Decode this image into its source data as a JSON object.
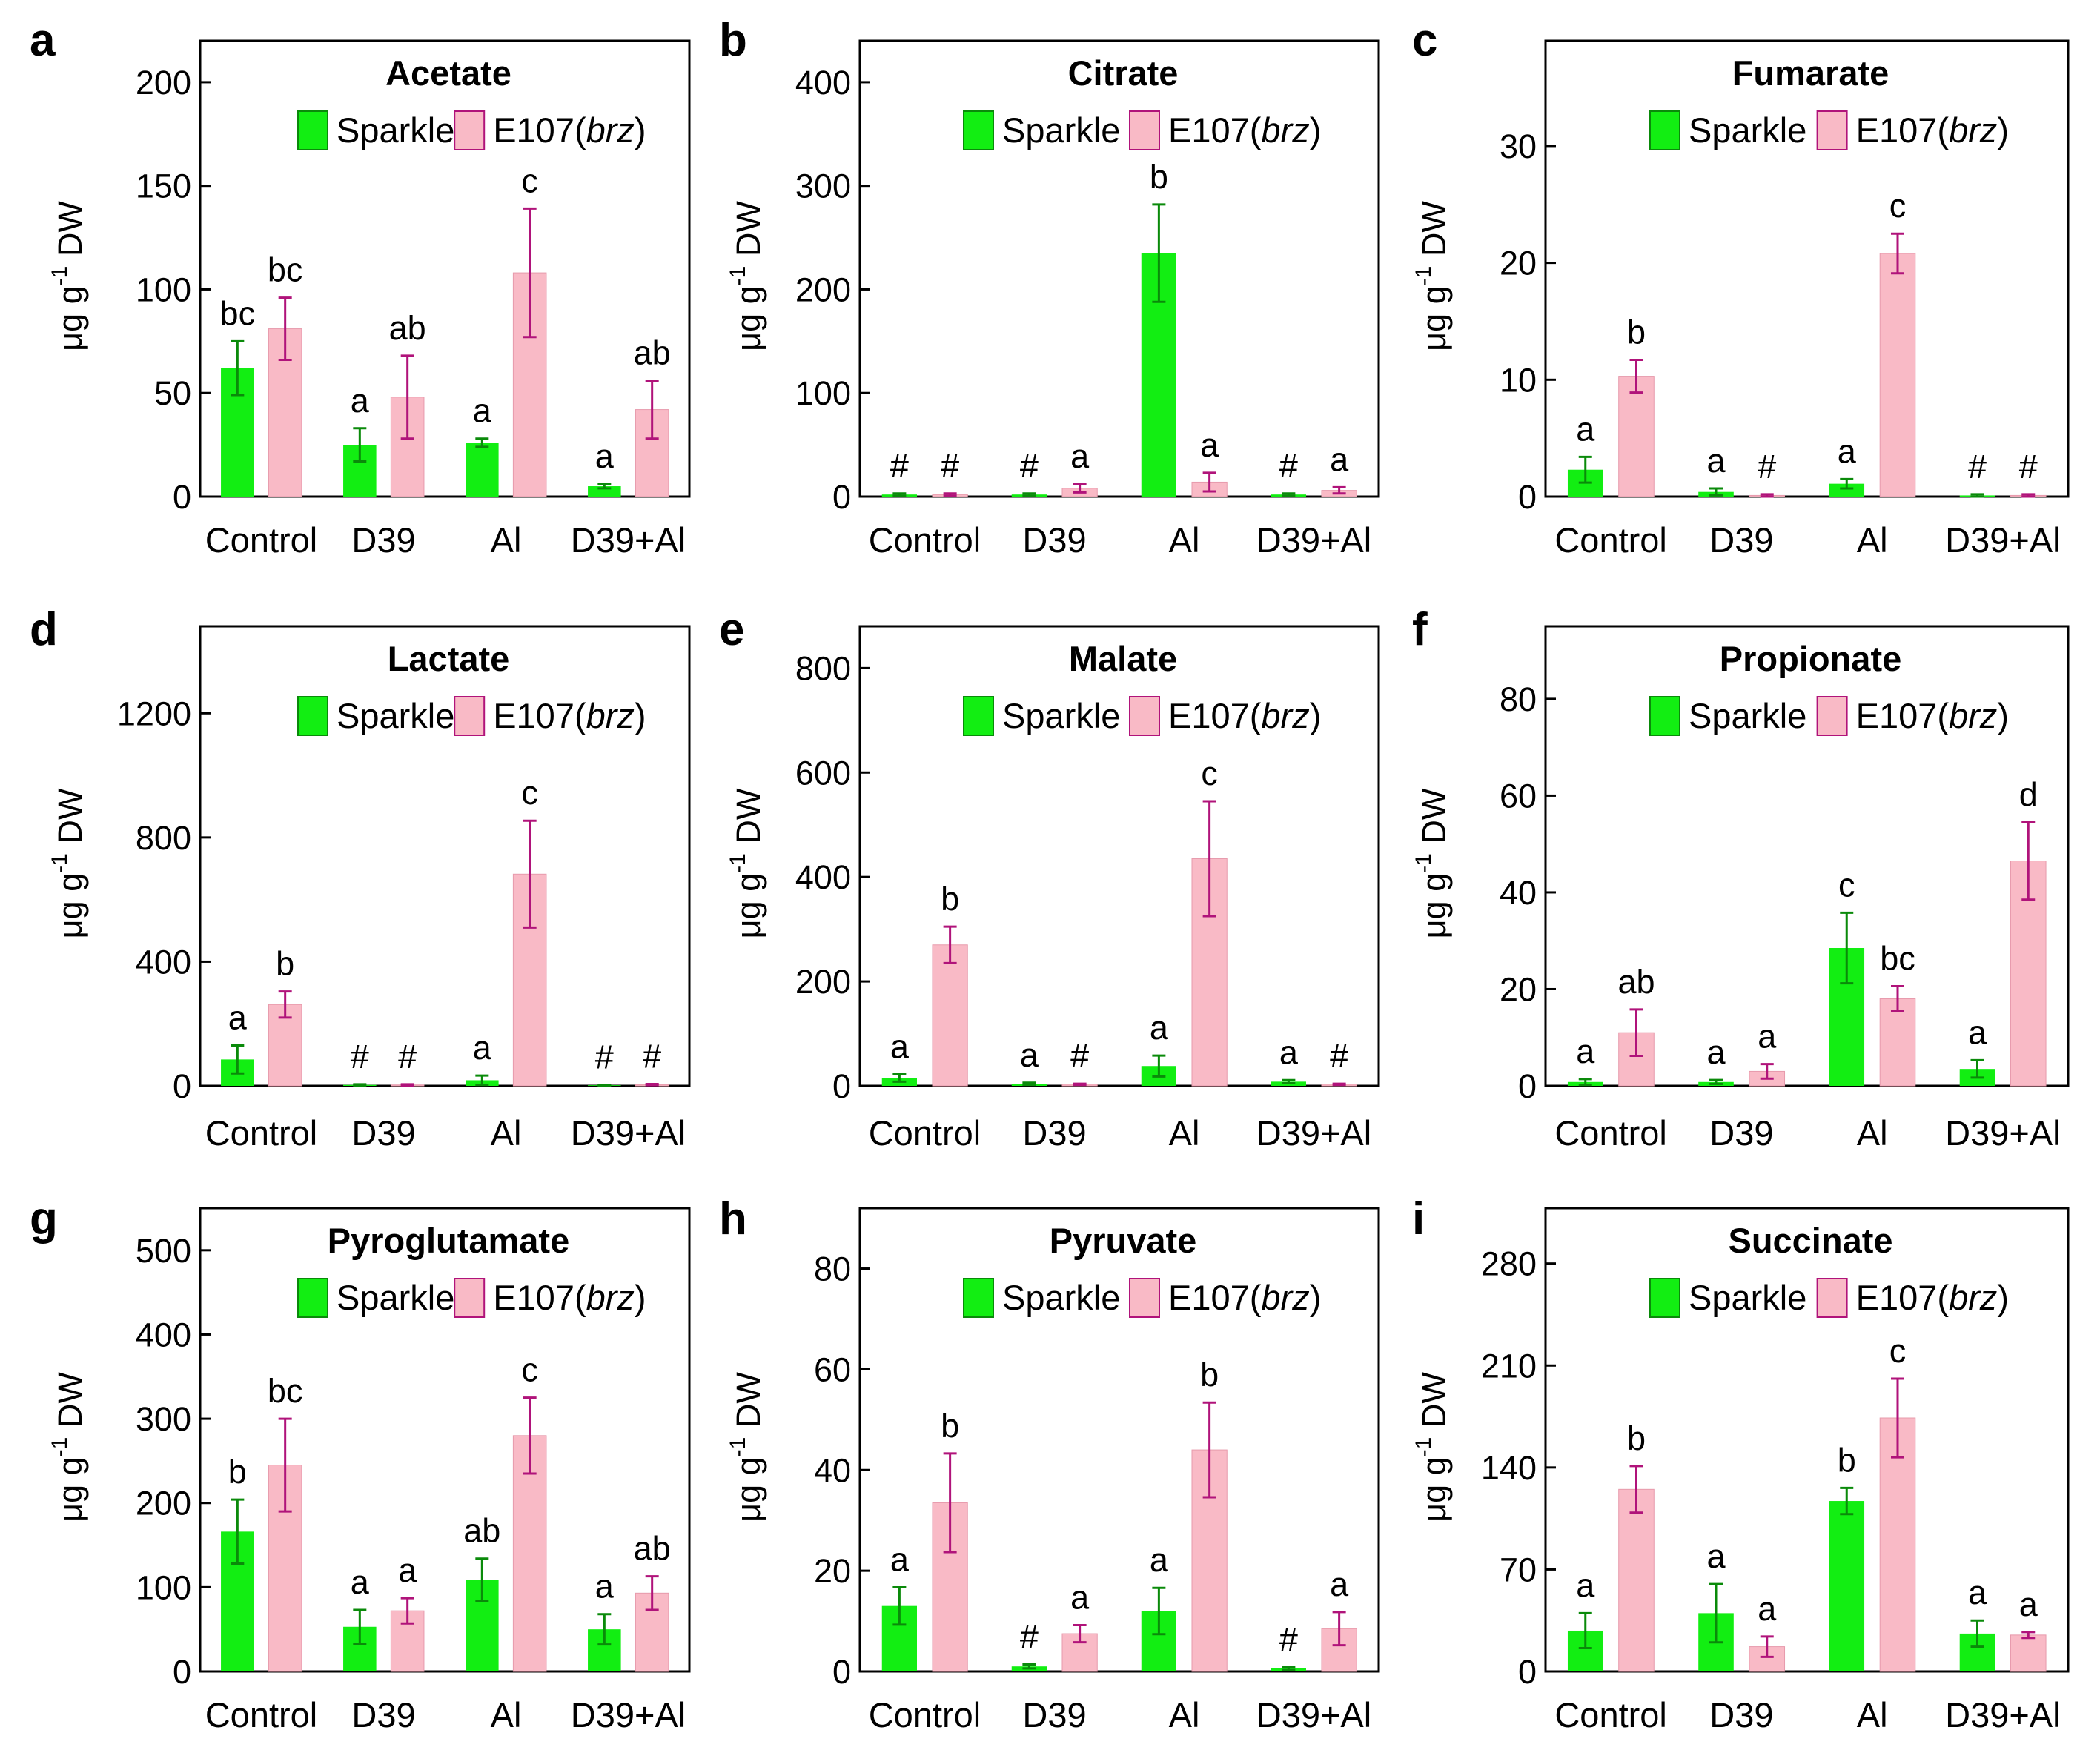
{
  "figure": {
    "categories": [
      "Control",
      "D39",
      "Al",
      "D39+Al"
    ],
    "ylabel": {
      "main": "μg g",
      "sup": "-1",
      "tail": " DW"
    },
    "legend": {
      "a": "Sparkle",
      "b_main": "E107(",
      "b_ital": "brz",
      "b_close": ")"
    },
    "colors": {
      "sparkle": "#12ee12",
      "sparkle_err": "#0a8a0a",
      "e107": "#f9bac6",
      "e107_err": "#b0137a"
    }
  },
  "chart_data": [
    {
      "panel": "a",
      "title": "Acetate",
      "type": "bar",
      "ylim": [
        0,
        220
      ],
      "ticks": [
        0,
        50,
        100,
        150,
        200
      ],
      "categories": [
        "Control",
        "D39",
        "Al",
        "D39+Al"
      ],
      "series": [
        {
          "name": "Sparkle",
          "values": [
            62,
            25,
            26,
            5
          ],
          "errors": [
            13,
            8,
            2,
            1
          ],
          "labels": [
            "bc",
            "a",
            "a",
            "a"
          ]
        },
        {
          "name": "E107(brz)",
          "values": [
            81,
            48,
            108,
            42
          ],
          "errors": [
            15,
            20,
            31,
            14
          ],
          "labels": [
            "bc",
            "ab",
            "c",
            "ab"
          ]
        }
      ]
    },
    {
      "panel": "b",
      "title": "Citrate",
      "type": "bar",
      "ylim": [
        0,
        440
      ],
      "ticks": [
        0,
        100,
        200,
        300,
        400
      ],
      "categories": [
        "Control",
        "D39",
        "Al",
        "D39+Al"
      ],
      "series": [
        {
          "name": "Sparkle",
          "values": [
            2,
            2,
            235,
            2
          ],
          "errors": [
            1,
            1,
            47,
            1
          ],
          "labels": [
            "#",
            "#",
            "b",
            "#"
          ]
        },
        {
          "name": "E107(brz)",
          "values": [
            2,
            8,
            14,
            6
          ],
          "errors": [
            1,
            4,
            9,
            3
          ],
          "labels": [
            "#",
            "a",
            "a",
            "a"
          ]
        }
      ]
    },
    {
      "panel": "c",
      "title": "Fumarate",
      "type": "bar",
      "ylim": [
        0,
        39
      ],
      "ticks": [
        0,
        10,
        20,
        30
      ],
      "categories": [
        "Control",
        "D39",
        "Al",
        "D39+Al"
      ],
      "series": [
        {
          "name": "Sparkle",
          "values": [
            2.3,
            0.4,
            1.1,
            0.1
          ],
          "errors": [
            1.1,
            0.3,
            0.4,
            0.1
          ],
          "labels": [
            "a",
            "a",
            "a",
            "#"
          ]
        },
        {
          "name": "E107(brz)",
          "values": [
            10.3,
            0.1,
            20.8,
            0.1
          ],
          "errors": [
            1.4,
            0.1,
            1.7,
            0.1
          ],
          "labels": [
            "b",
            "#",
            "c",
            "#"
          ]
        }
      ]
    },
    {
      "panel": "d",
      "title": "Lactate",
      "type": "bar",
      "ylim": [
        0,
        1480
      ],
      "ticks": [
        0,
        400,
        800,
        1200
      ],
      "categories": [
        "Control",
        "D39",
        "Al",
        "D39+Al"
      ],
      "series": [
        {
          "name": "Sparkle",
          "values": [
            85,
            3,
            18,
            2
          ],
          "errors": [
            45,
            2,
            15,
            1
          ],
          "labels": [
            "a",
            "#",
            "a",
            "#"
          ]
        },
        {
          "name": "E107(brz)",
          "values": [
            262,
            3,
            682,
            4
          ],
          "errors": [
            42,
            2,
            172,
            2
          ],
          "labels": [
            "b",
            "#",
            "c",
            "#"
          ]
        }
      ]
    },
    {
      "panel": "e",
      "title": "Malate",
      "type": "bar",
      "ylim": [
        0,
        880
      ],
      "ticks": [
        0,
        200,
        400,
        600,
        800
      ],
      "categories": [
        "Control",
        "D39",
        "Al",
        "D39+Al"
      ],
      "series": [
        {
          "name": "Sparkle",
          "values": [
            15,
            4,
            38,
            8
          ],
          "errors": [
            7,
            2,
            20,
            3
          ],
          "labels": [
            "a",
            "a",
            "a",
            "a"
          ]
        },
        {
          "name": "E107(brz)",
          "values": [
            270,
            3,
            435,
            3
          ],
          "errors": [
            35,
            1,
            110,
            1
          ],
          "labels": [
            "b",
            "#",
            "c",
            "#"
          ]
        }
      ]
    },
    {
      "panel": "f",
      "title": "Propionate",
      "type": "bar",
      "ylim": [
        0,
        95
      ],
      "ticks": [
        0,
        20,
        40,
        60,
        80
      ],
      "categories": [
        "Control",
        "D39",
        "Al",
        "D39+Al"
      ],
      "series": [
        {
          "name": "Sparkle",
          "values": [
            0.8,
            0.8,
            28.5,
            3.5
          ],
          "errors": [
            0.6,
            0.4,
            7.3,
            1.8
          ],
          "labels": [
            "a",
            "a",
            "c",
            "a"
          ]
        },
        {
          "name": "E107(brz)",
          "values": [
            11,
            3,
            18,
            46.5
          ],
          "errors": [
            4.8,
            1.5,
            2.6,
            8
          ],
          "labels": [
            "ab",
            "a",
            "bc",
            "d"
          ]
        }
      ]
    },
    {
      "panel": "g",
      "title": "Pyroglutamate",
      "type": "bar",
      "ylim": [
        0,
        550
      ],
      "ticks": [
        0,
        100,
        200,
        300,
        400,
        500
      ],
      "categories": [
        "Control",
        "D39",
        "Al",
        "D39+Al"
      ],
      "series": [
        {
          "name": "Sparkle",
          "values": [
            166,
            53,
            109,
            50
          ],
          "errors": [
            38,
            20,
            25,
            18
          ],
          "labels": [
            "b",
            "a",
            "ab",
            "a"
          ]
        },
        {
          "name": "E107(brz)",
          "values": [
            245,
            72,
            280,
            93
          ],
          "errors": [
            55,
            15,
            45,
            20
          ],
          "labels": [
            "bc",
            "a",
            "c",
            "ab"
          ]
        }
      ]
    },
    {
      "panel": "h",
      "title": "Pyruvate",
      "type": "bar",
      "ylim": [
        0,
        92
      ],
      "ticks": [
        0,
        20,
        40,
        60,
        80
      ],
      "categories": [
        "Control",
        "D39",
        "Al",
        "D39+Al"
      ],
      "series": [
        {
          "name": "Sparkle",
          "values": [
            13,
            1,
            12,
            0.6
          ],
          "errors": [
            3.7,
            0.4,
            4.6,
            0.3
          ],
          "labels": [
            "a",
            "#",
            "a",
            "#"
          ]
        },
        {
          "name": "E107(brz)",
          "values": [
            33.5,
            7.5,
            44,
            8.5
          ],
          "errors": [
            9.8,
            1.7,
            9.4,
            3.3
          ],
          "labels": [
            "b",
            "a",
            "b",
            "a"
          ]
        }
      ]
    },
    {
      "panel": "i",
      "title": "Succinate",
      "type": "bar",
      "ylim": [
        0,
        318
      ],
      "ticks": [
        0,
        70,
        140,
        210,
        280
      ],
      "categories": [
        "Control",
        "D39",
        "Al",
        "D39+Al"
      ],
      "series": [
        {
          "name": "Sparkle",
          "values": [
            28,
            40,
            117,
            26
          ],
          "errors": [
            12,
            20,
            9,
            9
          ],
          "labels": [
            "a",
            "a",
            "b",
            "a"
          ]
        },
        {
          "name": "E107(brz)",
          "values": [
            125,
            17,
            174,
            25
          ],
          "errors": [
            16,
            7,
            27,
            2
          ],
          "labels": [
            "b",
            "a",
            "c",
            "a"
          ]
        }
      ]
    }
  ]
}
